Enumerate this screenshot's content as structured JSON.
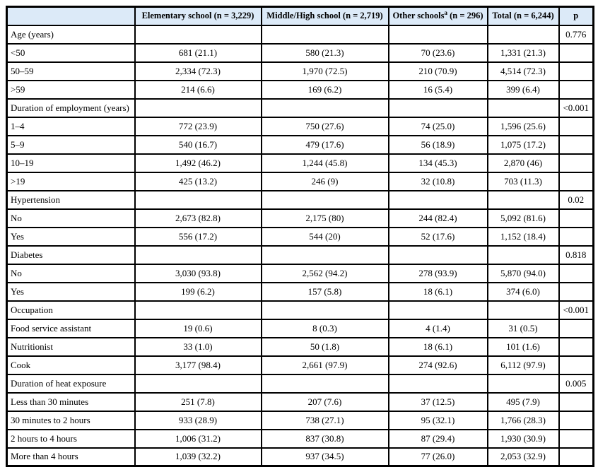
{
  "page": {
    "background": "#ffffff"
  },
  "colors": {
    "header_bg": "#dceaf8",
    "border": "#000000",
    "text": "#000000"
  },
  "table": {
    "header": {
      "row_label": "",
      "elementary": "Elementary school (n = 3,229)",
      "middle_high": "Middle/High school (n = 2,719)",
      "other_main": "Other schools",
      "other_sup": "a",
      "other_rest": " (n = 296)",
      "total": "Total (n = 6,244)",
      "p": "p"
    },
    "rows": [
      {
        "section": true,
        "label": "Age (years)",
        "values": [
          "",
          "",
          "",
          ""
        ],
        "p": "0.776"
      },
      {
        "section": false,
        "label": "<50",
        "values": [
          "681 (21.1)",
          "580 (21.3)",
          "70 (23.6)",
          "1,331 (21.3)"
        ],
        "p": ""
      },
      {
        "section": false,
        "label": "50–59",
        "values": [
          "2,334 (72.3)",
          "1,970 (72.5)",
          "210 (70.9)",
          "4,514 (72.3)"
        ],
        "p": ""
      },
      {
        "section": false,
        "label": ">59",
        "values": [
          "214 (6.6)",
          "169 (6.2)",
          "16 (5.4)",
          "399 (6.4)"
        ],
        "p": ""
      },
      {
        "section": true,
        "label": "Duration of employment (years)",
        "values": [
          "",
          "",
          "",
          ""
        ],
        "p": "<0.001"
      },
      {
        "section": false,
        "label": "1–4",
        "values": [
          "772 (23.9)",
          "750 (27.6)",
          "74 (25.0)",
          "1,596 (25.6)"
        ],
        "p": ""
      },
      {
        "section": false,
        "label": "5–9",
        "values": [
          "540 (16.7)",
          "479 (17.6)",
          "56 (18.9)",
          "1,075 (17.2)"
        ],
        "p": ""
      },
      {
        "section": false,
        "label": "10–19",
        "values": [
          "1,492 (46.2)",
          "1,244 (45.8)",
          "134 (45.3)",
          "2,870 (46)"
        ],
        "p": ""
      },
      {
        "section": false,
        "label": ">19",
        "values": [
          "425 (13.2)",
          "246 (9)",
          "32 (10.8)",
          "703 (11.3)"
        ],
        "p": ""
      },
      {
        "section": true,
        "label": "Hypertension",
        "values": [
          "",
          "",
          "",
          ""
        ],
        "p": "0.02"
      },
      {
        "section": false,
        "label": "No",
        "values": [
          "2,673 (82.8)",
          "2,175 (80)",
          "244 (82.4)",
          "5,092 (81.6)"
        ],
        "p": ""
      },
      {
        "section": false,
        "label": "Yes",
        "values": [
          "556 (17.2)",
          "544 (20)",
          "52 (17.6)",
          "1,152 (18.4)"
        ],
        "p": ""
      },
      {
        "section": true,
        "label": "Diabetes",
        "values": [
          "",
          "",
          "",
          ""
        ],
        "p": "0.818"
      },
      {
        "section": false,
        "label": "No",
        "values": [
          "3,030 (93.8)",
          "2,562 (94.2)",
          "278 (93.9)",
          "5,870 (94.0)"
        ],
        "p": ""
      },
      {
        "section": false,
        "label": "Yes",
        "values": [
          "199 (6.2)",
          "157 (5.8)",
          "18 (6.1)",
          "374 (6.0)"
        ],
        "p": ""
      },
      {
        "section": true,
        "label": "Occupation",
        "values": [
          "",
          "",
          "",
          ""
        ],
        "p": "<0.001"
      },
      {
        "section": false,
        "label": "Food service assistant",
        "values": [
          "19 (0.6)",
          "8 (0.3)",
          "4 (1.4)",
          "31 (0.5)"
        ],
        "p": ""
      },
      {
        "section": false,
        "label": "Nutritionist",
        "values": [
          "33 (1.0)",
          "50 (1.8)",
          "18 (6.1)",
          "101 (1.6)"
        ],
        "p": ""
      },
      {
        "section": false,
        "label": "Cook",
        "values": [
          "3,177 (98.4)",
          "2,661 (97.9)",
          "274 (92.6)",
          "6,112 (97.9)"
        ],
        "p": ""
      },
      {
        "section": true,
        "label": "Duration of heat exposure",
        "values": [
          "",
          "",
          "",
          ""
        ],
        "p": "0.005"
      },
      {
        "section": false,
        "label": "Less than 30 minutes",
        "values": [
          "251 (7.8)",
          "207 (7.6)",
          "37 (12.5)",
          "495 (7.9)"
        ],
        "p": ""
      },
      {
        "section": false,
        "label": "30 minutes to 2 hours",
        "values": [
          "933 (28.9)",
          "738 (27.1)",
          "95 (32.1)",
          "1,766 (28.3)"
        ],
        "p": ""
      },
      {
        "section": false,
        "label": "2 hours to 4 hours",
        "values": [
          "1,006 (31.2)",
          "837 (30.8)",
          "87 (29.4)",
          "1,930 (30.9)"
        ],
        "p": ""
      },
      {
        "section": false,
        "label": "More than 4 hours",
        "values": [
          "1,039 (32.2)",
          "937 (34.5)",
          "77 (26.0)",
          "2,053 (32.9)"
        ],
        "p": ""
      }
    ]
  }
}
